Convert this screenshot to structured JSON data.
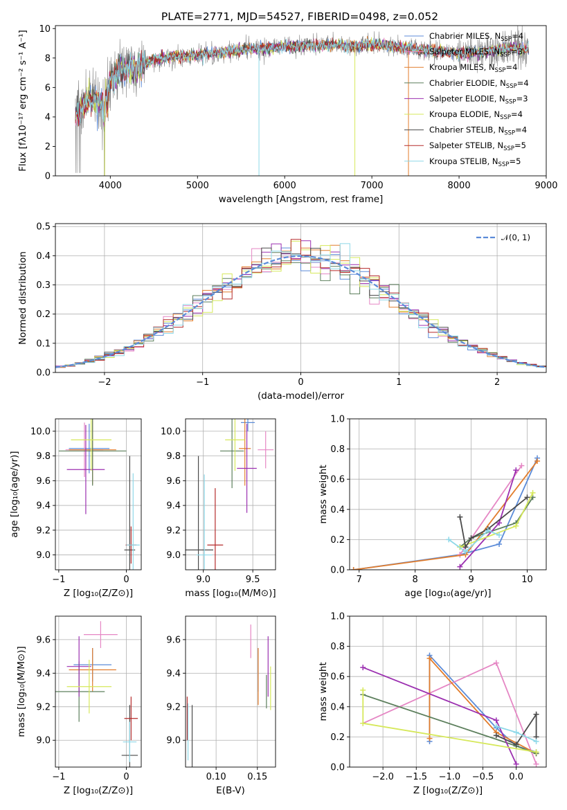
{
  "title": "PLATE=2771, MJD=54527, FIBERID=0498, z=0.052",
  "colors": {
    "Chabrier MILES": "#5b8bd8",
    "Salpeter MILES": "#e586c4",
    "Kroupa MILES": "#e27d2c",
    "Chabrier ELODIE": "#5c7f5c",
    "Salpeter ELODIE": "#9b2fb0",
    "Kroupa ELODIE": "#d6e85a",
    "Chabrier STELIB": "#4a4a4a",
    "Salpeter STELIB": "#b52a2a",
    "Kroupa STELIB": "#8ed8e8",
    "data": "#808080",
    "normal": "#5b8bd8"
  },
  "chart_data": [
    {
      "id": "spectrum",
      "type": "line",
      "title": "PLATE=2771, MJD=54527, FIBERID=0498, z=0.052",
      "xlabel": "wavelength [Angstrom, rest frame]",
      "ylabel": "Flux [fλ10⁻¹⁷ erg cm⁻² s⁻¹ A⁻¹]",
      "xlim": [
        3370,
        9000
      ],
      "ylim": [
        0,
        10.2
      ],
      "xticks": [
        "4000",
        "5000",
        "6000",
        "7000",
        "8000",
        "9000"
      ],
      "yticks": [
        "0",
        "2",
        "4",
        "6",
        "8",
        "10"
      ],
      "legend_position": "right",
      "series_order": [
        "Chabrier MILES",
        "Salpeter MILES",
        "Kroupa MILES",
        "Chabrier ELODIE",
        "Salpeter ELODIE",
        "Kroupa ELODIE",
        "Chabrier STELIB",
        "Salpeter STELIB",
        "Kroupa STELIB"
      ],
      "legend": [
        {
          "label": "Chabrier MILES, N",
          "sub": "SSP",
          "suffix": "=4"
        },
        {
          "label": "Salpeter MILES, N",
          "sub": "SSP",
          "suffix": "=3"
        },
        {
          "label": "Kroupa MILES, N",
          "sub": "SSP",
          "suffix": "=4"
        },
        {
          "label": "Chabrier ELODIE, N",
          "sub": "SSP",
          "suffix": "=4"
        },
        {
          "label": "Salpeter ELODIE, N",
          "sub": "SSP",
          "suffix": "=3"
        },
        {
          "label": "Kroupa ELODIE, N",
          "sub": "SSP",
          "suffix": "=4"
        },
        {
          "label": "Chabrier STELIB, N",
          "sub": "SSP",
          "suffix": "=4"
        },
        {
          "label": "Salpeter STELIB, N",
          "sub": "SSP",
          "suffix": "=5"
        },
        {
          "label": "Kroupa STELIB, N",
          "sub": "SSP",
          "suffix": "=5"
        }
      ],
      "continuum": [
        [
          3600,
          4.2
        ],
        [
          3700,
          4.8
        ],
        [
          3800,
          5.2
        ],
        [
          3900,
          4.9
        ],
        [
          3950,
          5.4
        ],
        [
          4000,
          6.5
        ],
        [
          4100,
          7.1
        ],
        [
          4200,
          7.3
        ],
        [
          4300,
          7.2
        ],
        [
          4400,
          7.6
        ],
        [
          4500,
          7.9
        ],
        [
          4700,
          8.1
        ],
        [
          5000,
          8.2
        ],
        [
          5300,
          8.4
        ],
        [
          5600,
          8.6
        ],
        [
          5900,
          8.7
        ],
        [
          6200,
          8.8
        ],
        [
          6500,
          8.9
        ],
        [
          6800,
          8.8
        ],
        [
          7100,
          8.9
        ],
        [
          7400,
          8.7
        ],
        [
          7700,
          8.5
        ],
        [
          8000,
          8.3
        ],
        [
          8300,
          8.4
        ],
        [
          8600,
          8.7
        ],
        [
          8800,
          8.6
        ]
      ]
    },
    {
      "id": "residuals",
      "type": "line",
      "xlabel": "(data-model)/error",
      "ylabel": "Normed distribution",
      "xlim": [
        -2.5,
        2.5
      ],
      "ylim": [
        0,
        0.51
      ],
      "xticks": [
        "−2",
        "−1",
        "0",
        "1",
        "2"
      ],
      "yticks": [
        "0.0",
        "0.1",
        "0.2",
        "0.3",
        "0.4",
        "0.5"
      ],
      "grid": true,
      "legend_label": "𝒩(0, 1)",
      "legend_position": "top-right"
    },
    {
      "id": "age-vs-Z",
      "type": "scatter",
      "xlabel": "Z [log₁₀(Z/Z⊙)]",
      "ylabel": "age  [log₁₀(age/yr)]",
      "xlim": [
        -1.05,
        0.22
      ],
      "ylim": [
        8.88,
        10.1
      ],
      "xticks": [
        "−1",
        "0"
      ],
      "yticks": [
        "9.0",
        "9.2",
        "9.4",
        "9.6",
        "9.8",
        "10.0"
      ],
      "grid": true,
      "errorbars": [
        {
          "series": "Chabrier MILES",
          "x": -0.55,
          "y": 9.86,
          "xerr": 0.3,
          "yerr": 0.2
        },
        {
          "series": "Salpeter MILES",
          "x": -0.62,
          "y": 9.85,
          "xerr": 0.28,
          "yerr": 0.22
        },
        {
          "series": "Kroupa MILES",
          "x": -0.5,
          "y": 9.85,
          "xerr": 0.35,
          "yerr": 0.28
        },
        {
          "series": "Chabrier ELODIE",
          "x": -0.5,
          "y": 9.84,
          "xerr": 0.5,
          "yerr": 0.28
        },
        {
          "series": "Salpeter ELODIE",
          "x": -0.6,
          "y": 9.69,
          "xerr": 0.28,
          "yerr": 0.36
        },
        {
          "series": "Kroupa ELODIE",
          "x": -0.52,
          "y": 9.93,
          "xerr": 0.3,
          "yerr": 0.25
        },
        {
          "series": "Chabrier STELIB",
          "x": 0.05,
          "y": 9.04,
          "xerr": 0.08,
          "yerr": 0.76
        },
        {
          "series": "Salpeter STELIB",
          "x": 0.07,
          "y": 9.08,
          "xerr": 0.08,
          "yerr": 0.15
        },
        {
          "series": "Kroupa STELIB",
          "x": 0.1,
          "y": 9.08,
          "xerr": 0.1,
          "yerr": 0.58
        }
      ]
    },
    {
      "id": "age-vs-mass",
      "type": "scatter",
      "xlabel": "mass [log₁₀(M/M⊙)]",
      "ylabel": "",
      "xlim": [
        8.82,
        9.73
      ],
      "ylim": [
        8.88,
        10.1
      ],
      "xticks": [
        "9.0",
        "9.5"
      ],
      "yticks": [
        "9.0",
        "9.2",
        "9.4",
        "9.6",
        "9.8",
        "10.0"
      ],
      "grid": true,
      "errorbars": [
        {
          "series": "Chabrier MILES",
          "x": 9.45,
          "y": 10.07,
          "xerr": 0.07,
          "yerr": 0.07
        },
        {
          "series": "Salpeter MILES",
          "x": 9.63,
          "y": 9.85,
          "xerr": 0.08,
          "yerr": 0.15
        },
        {
          "series": "Kroupa MILES",
          "x": 9.42,
          "y": 9.86,
          "xerr": 0.06,
          "yerr": 0.3
        },
        {
          "series": "Chabrier ELODIE",
          "x": 9.29,
          "y": 9.84,
          "xerr": 0.12,
          "yerr": 0.3
        },
        {
          "series": "Salpeter ELODIE",
          "x": 9.44,
          "y": 9.7,
          "xerr": 0.1,
          "yerr": 0.36
        },
        {
          "series": "Kroupa ELODIE",
          "x": 9.32,
          "y": 9.93,
          "xerr": 0.1,
          "yerr": 0.25
        },
        {
          "series": "Chabrier STELIB",
          "x": 8.95,
          "y": 9.04,
          "xerr": 0.15,
          "yerr": 0.76
        },
        {
          "series": "Salpeter STELIB",
          "x": 9.12,
          "y": 9.08,
          "xerr": 0.08,
          "yerr": 0.46
        },
        {
          "series": "Kroupa STELIB",
          "x": 9.01,
          "y": 9.0,
          "xerr": 0.08,
          "yerr": 0.65
        }
      ]
    },
    {
      "id": "mass-vs-Z",
      "type": "scatter",
      "xlabel": "Z [log₁₀(Z/Z⊙)]",
      "ylabel": "mass [log₁₀(M/M⊙)]",
      "xlim": [
        -1.05,
        0.22
      ],
      "ylim": [
        8.84,
        9.74
      ],
      "xticks": [
        "−1",
        "0"
      ],
      "yticks": [
        "9.0",
        "9.2",
        "9.4",
        "9.6"
      ],
      "grid": true,
      "errorbars": [
        {
          "series": "Chabrier MILES",
          "x": -0.5,
          "y": 9.45,
          "xerr": 0.28,
          "yerr": 0.1
        },
        {
          "series": "Salpeter MILES",
          "x": -0.38,
          "y": 9.63,
          "xerr": 0.25,
          "yerr": 0.08
        },
        {
          "series": "Kroupa MILES",
          "x": -0.5,
          "y": 9.42,
          "xerr": 0.35,
          "yerr": 0.13
        },
        {
          "series": "Chabrier ELODIE",
          "x": -0.7,
          "y": 9.29,
          "xerr": 0.38,
          "yerr": 0.18
        },
        {
          "series": "Salpeter ELODIE",
          "x": -0.7,
          "y": 9.44,
          "xerr": 0.18,
          "yerr": 0.18
        },
        {
          "series": "Kroupa ELODIE",
          "x": -0.55,
          "y": 9.32,
          "xerr": 0.33,
          "yerr": 0.16
        },
        {
          "series": "Chabrier STELIB",
          "x": 0.05,
          "y": 8.91,
          "xerr": 0.12,
          "yerr": 0.3
        },
        {
          "series": "Salpeter STELIB",
          "x": 0.07,
          "y": 9.13,
          "xerr": 0.1,
          "yerr": 0.13
        },
        {
          "series": "Kroupa STELIB",
          "x": 0.05,
          "y": 8.99,
          "xerr": 0.1,
          "yerr": 0.12
        }
      ]
    },
    {
      "id": "mass-vs-ebv",
      "type": "scatter",
      "xlabel": "E(B-V)",
      "ylabel": "",
      "xlim": [
        0.063,
        0.172
      ],
      "ylim": [
        8.84,
        9.74
      ],
      "xticks": [
        "0.10",
        "0.15"
      ],
      "yticks": [
        "9.0",
        "9.2",
        "9.4",
        "9.6"
      ],
      "grid": true,
      "errorbars": [
        {
          "series": "Chabrier MILES",
          "x": 0.151,
          "y": 9.42,
          "xerr": 0,
          "yerr": 0.13
        },
        {
          "series": "Salpeter MILES",
          "x": 0.142,
          "y": 9.59,
          "xerr": 0,
          "yerr": 0.1
        },
        {
          "series": "Kroupa MILES",
          "x": 0.151,
          "y": 9.38,
          "xerr": 0,
          "yerr": 0.17
        },
        {
          "series": "Chabrier ELODIE",
          "x": 0.161,
          "y": 9.29,
          "xerr": 0,
          "yerr": 0.1
        },
        {
          "series": "Salpeter ELODIE",
          "x": 0.163,
          "y": 9.44,
          "xerr": 0,
          "yerr": 0.18
        },
        {
          "series": "Kroupa ELODIE",
          "x": 0.166,
          "y": 9.31,
          "xerr": 0,
          "yerr": 0.13
        },
        {
          "series": "Chabrier STELIB",
          "x": 0.071,
          "y": 8.96,
          "xerr": 0,
          "yerr": 0.25
        },
        {
          "series": "Salpeter STELIB",
          "x": 0.065,
          "y": 9.13,
          "xerr": 0,
          "yerr": 0.13
        },
        {
          "series": "Kroupa STELIB",
          "x": 0.066,
          "y": 9.05,
          "xerr": 0,
          "yerr": 0.17
        }
      ]
    },
    {
      "id": "mass-weight-vs-age",
      "type": "line",
      "xlabel": "age  [log₁₀(age/yr)]",
      "ylabel": "mass weight",
      "xlim": [
        6.83,
        10.34
      ],
      "ylim": [
        0,
        1.0
      ],
      "xticks": [
        "7",
        "8",
        "9",
        "10"
      ],
      "yticks": [
        "0.0",
        "0.2",
        "0.4",
        "0.6",
        "0.8",
        "1.0"
      ],
      "grid": true,
      "series": [
        {
          "series": "Chabrier MILES",
          "points": [
            [
              6.9,
              0.0
            ],
            [
              8.8,
              0.1
            ],
            [
              9.5,
              0.17
            ],
            [
              10.18,
              0.74
            ]
          ]
        },
        {
          "series": "Salpeter MILES",
          "points": [
            [
              8.8,
              0.1
            ],
            [
              9.9,
              0.69
            ]
          ]
        },
        {
          "series": "Kroupa MILES",
          "points": [
            [
              6.9,
              0.0
            ],
            [
              8.9,
              0.1
            ],
            [
              10.18,
              0.72
            ]
          ]
        },
        {
          "series": "Chabrier ELODIE",
          "points": [
            [
              8.8,
              0.15
            ],
            [
              9.0,
              0.21
            ],
            [
              9.8,
              0.31
            ],
            [
              10.1,
              0.48
            ]
          ]
        },
        {
          "series": "Salpeter ELODIE",
          "points": [
            [
              8.8,
              0.02
            ],
            [
              9.5,
              0.31
            ],
            [
              9.8,
              0.66
            ]
          ]
        },
        {
          "series": "Kroupa ELODIE",
          "points": [
            [
              8.8,
              0.15
            ],
            [
              9.8,
              0.29
            ],
            [
              10.1,
              0.51
            ]
          ]
        },
        {
          "series": "Chabrier STELIB",
          "points": [
            [
              8.8,
              0.35
            ],
            [
              8.9,
              0.15
            ],
            [
              9.0,
              0.21
            ],
            [
              9.3,
              0.27
            ],
            [
              10.0,
              0.48
            ]
          ]
        },
        {
          "series": "Kroupa STELIB",
          "points": [
            [
              8.6,
              0.2
            ],
            [
              8.9,
              0.12
            ],
            [
              9.3,
              0.26
            ],
            [
              9.5,
              0.23
            ]
          ]
        }
      ]
    },
    {
      "id": "mass-weight-vs-Z",
      "type": "line",
      "xlabel": "Z [log₁₀(Z/Z⊙)]",
      "ylabel": "mass weight",
      "xlim": [
        -2.5,
        0.45
      ],
      "ylim": [
        0,
        1.0
      ],
      "xticks": [
        "−2.0",
        "−1.5",
        "−1.0",
        "−0.5",
        "0.0"
      ],
      "yticks": [
        "0.0",
        "0.2",
        "0.4",
        "0.6",
        "0.8",
        "1.0"
      ],
      "grid": true,
      "series": [
        {
          "series": "Chabrier MILES",
          "points": [
            [
              -1.3,
              0.17
            ],
            [
              -1.3,
              0.74
            ],
            [
              -0.3,
              0.26
            ],
            [
              0.0,
              0.14
            ],
            [
              0.3,
              0.1
            ]
          ]
        },
        {
          "series": "Salpeter MILES",
          "points": [
            [
              -2.3,
              0.29
            ],
            [
              -0.3,
              0.69
            ],
            [
              0.3,
              0.02
            ]
          ]
        },
        {
          "series": "Kroupa MILES",
          "points": [
            [
              -1.3,
              0.19
            ],
            [
              -1.3,
              0.72
            ],
            [
              -0.3,
              0.23
            ],
            [
              0.3,
              0.09
            ]
          ]
        },
        {
          "series": "Chabrier ELODIE",
          "points": [
            [
              -2.3,
              0.48
            ],
            [
              0.0,
              0.14
            ],
            [
              0.3,
              0.09
            ]
          ]
        },
        {
          "series": "Salpeter ELODIE",
          "points": [
            [
              -2.3,
              0.66
            ],
            [
              -0.3,
              0.31
            ],
            [
              0.0,
              0.02
            ]
          ]
        },
        {
          "series": "Kroupa ELODIE",
          "points": [
            [
              -2.3,
              0.51
            ],
            [
              -2.3,
              0.29
            ],
            [
              0.3,
              0.1
            ]
          ]
        },
        {
          "series": "Chabrier STELIB",
          "points": [
            [
              -0.3,
              0.21
            ],
            [
              0.0,
              0.15
            ],
            [
              0.3,
              0.35
            ],
            [
              0.3,
              0.2
            ]
          ]
        },
        {
          "series": "Kroupa STELIB",
          "points": [
            [
              -0.3,
              0.27
            ],
            [
              0.0,
              0.23
            ],
            [
              0.3,
              0.17
            ]
          ]
        }
      ]
    }
  ]
}
